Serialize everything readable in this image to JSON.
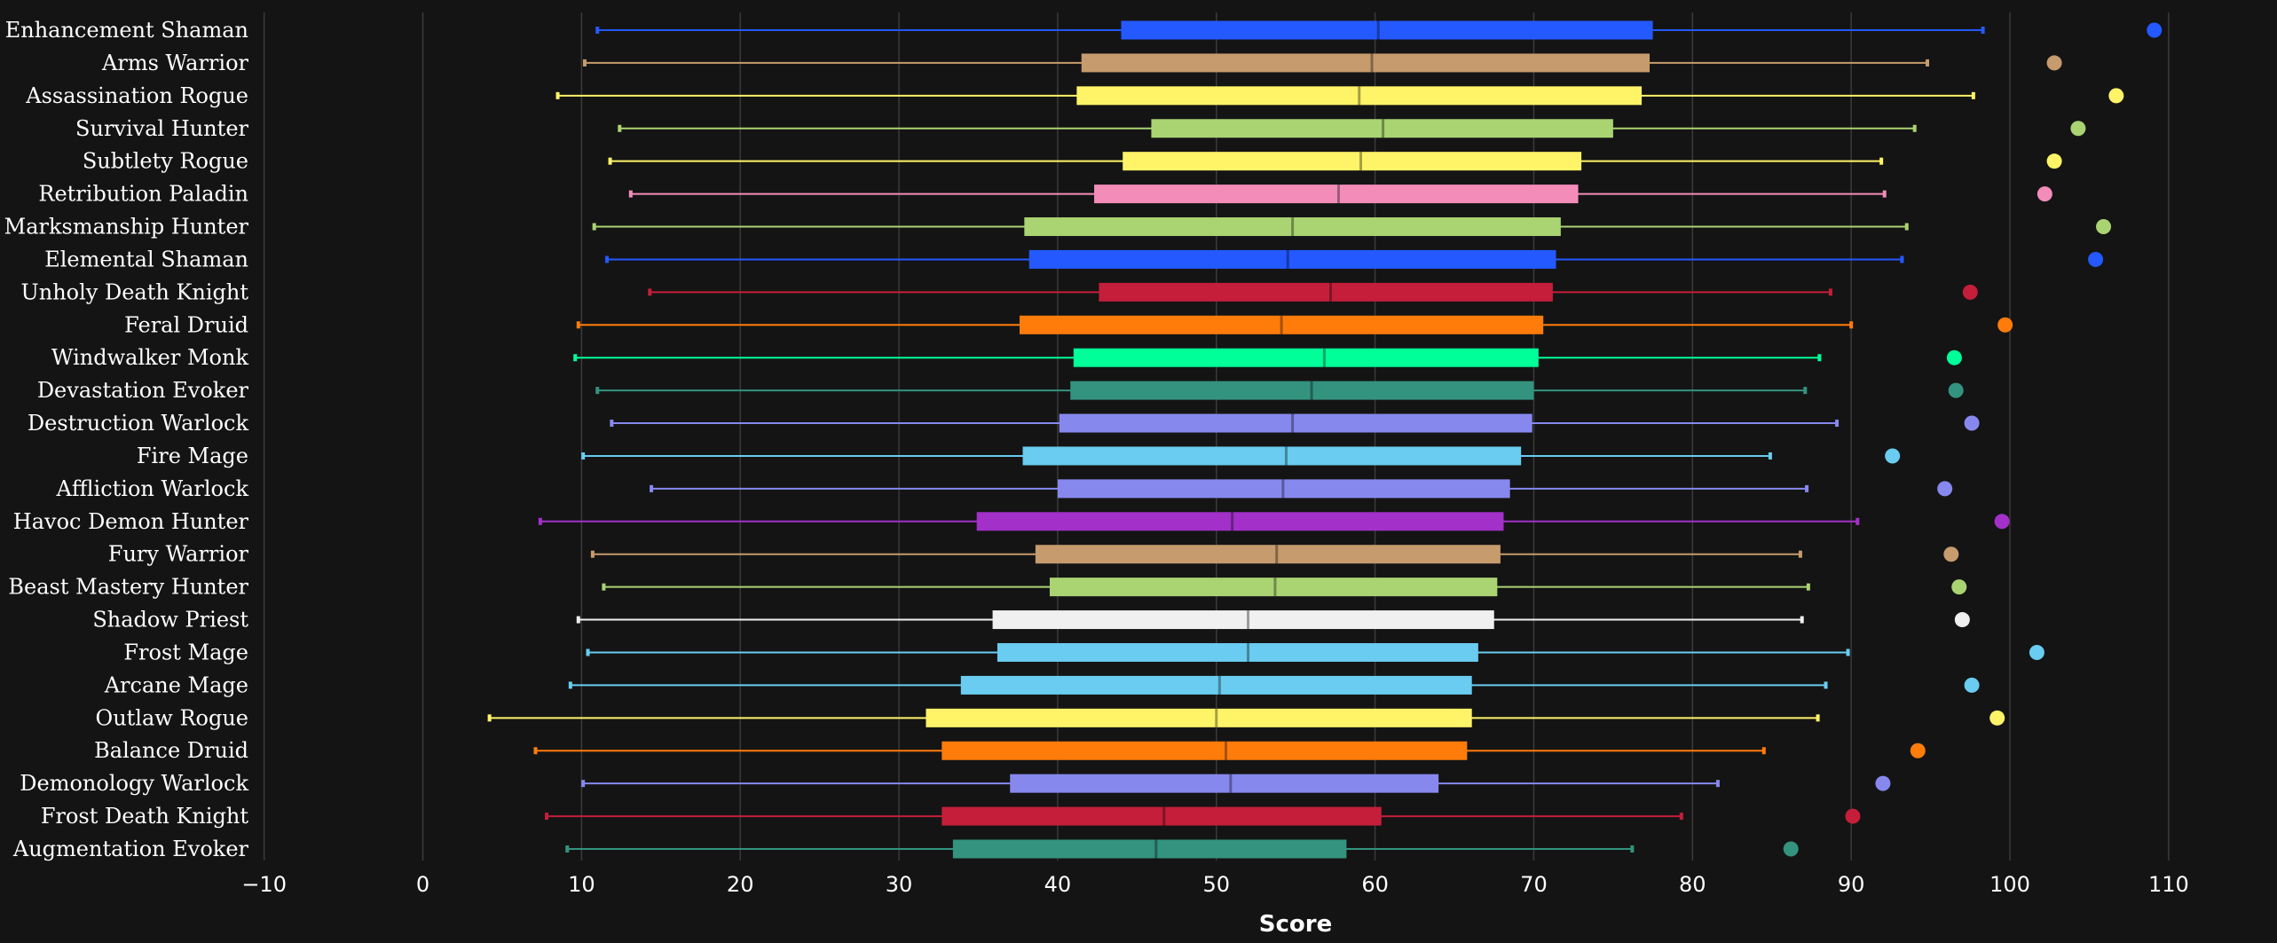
{
  "chart_data": {
    "type": "box",
    "orientation": "horizontal",
    "xlabel": "Score",
    "xlim": [
      -10,
      110
    ],
    "xticks": [
      -10,
      0,
      10,
      20,
      30,
      40,
      50,
      60,
      70,
      80,
      90,
      100,
      110
    ],
    "xtick_labels": [
      "−10",
      "0",
      "10",
      "20",
      "30",
      "40",
      "50",
      "60",
      "70",
      "80",
      "90",
      "100",
      "110"
    ],
    "grid": "vertical",
    "background": "#141414",
    "series": [
      {
        "name": "Enhancement Shaman",
        "color": "#2459FF",
        "whisker_low": 11.0,
        "q1": 44.0,
        "median": 60.2,
        "q3": 77.5,
        "whisker_high": 98.3,
        "outlier": 109.1
      },
      {
        "name": "Arms Warrior",
        "color": "#C69B6D",
        "whisker_low": 10.2,
        "q1": 41.5,
        "median": 59.8,
        "q3": 77.3,
        "whisker_high": 94.8,
        "outlier": 102.8
      },
      {
        "name": "Assassination Rogue",
        "color": "#FFF468",
        "whisker_low": 8.5,
        "q1": 41.2,
        "median": 59.0,
        "q3": 76.8,
        "whisker_high": 97.7,
        "outlier": 106.7
      },
      {
        "name": "Survival Hunter",
        "color": "#AAD372",
        "whisker_low": 12.4,
        "q1": 45.9,
        "median": 60.5,
        "q3": 75.0,
        "whisker_high": 94.0,
        "outlier": 104.3
      },
      {
        "name": "Subtlety Rogue",
        "color": "#FFF468",
        "whisker_low": 11.8,
        "q1": 44.1,
        "median": 59.1,
        "q3": 73.0,
        "whisker_high": 91.9,
        "outlier": 102.8
      },
      {
        "name": "Retribution Paladin",
        "color": "#F48CBA",
        "whisker_low": 13.1,
        "q1": 42.3,
        "median": 57.7,
        "q3": 72.8,
        "whisker_high": 92.1,
        "outlier": 102.2
      },
      {
        "name": "Marksmanship Hunter",
        "color": "#AAD372",
        "whisker_low": 10.8,
        "q1": 37.9,
        "median": 54.8,
        "q3": 71.7,
        "whisker_high": 93.5,
        "outlier": 105.9
      },
      {
        "name": "Elemental Shaman",
        "color": "#2459FF",
        "whisker_low": 11.6,
        "q1": 38.2,
        "median": 54.5,
        "q3": 71.4,
        "whisker_high": 93.2,
        "outlier": 105.4
      },
      {
        "name": "Unholy Death Knight",
        "color": "#C41E3A",
        "whisker_low": 14.3,
        "q1": 42.6,
        "median": 57.2,
        "q3": 71.2,
        "whisker_high": 88.7,
        "outlier": 97.5
      },
      {
        "name": "Feral Druid",
        "color": "#FF7C0A",
        "whisker_low": 9.8,
        "q1": 37.6,
        "median": 54.1,
        "q3": 70.6,
        "whisker_high": 90.0,
        "outlier": 99.7
      },
      {
        "name": "Windwalker Monk",
        "color": "#00FF98",
        "whisker_low": 9.6,
        "q1": 41.0,
        "median": 56.8,
        "q3": 70.3,
        "whisker_high": 88.0,
        "outlier": 96.5
      },
      {
        "name": "Devastation Evoker",
        "color": "#33937F",
        "whisker_low": 11.0,
        "q1": 40.8,
        "median": 56.0,
        "q3": 70.0,
        "whisker_high": 87.1,
        "outlier": 96.6
      },
      {
        "name": "Destruction Warlock",
        "color": "#8788EE",
        "whisker_low": 11.9,
        "q1": 40.1,
        "median": 54.8,
        "q3": 69.9,
        "whisker_high": 89.1,
        "outlier": 97.6
      },
      {
        "name": "Fire Mage",
        "color": "#69CCF0",
        "whisker_low": 10.1,
        "q1": 37.8,
        "median": 54.4,
        "q3": 69.2,
        "whisker_high": 84.9,
        "outlier": 92.6
      },
      {
        "name": "Affliction Warlock",
        "color": "#8788EE",
        "whisker_low": 14.4,
        "q1": 40.0,
        "median": 54.2,
        "q3": 68.5,
        "whisker_high": 87.2,
        "outlier": 95.9
      },
      {
        "name": "Havoc Demon Hunter",
        "color": "#A330C9",
        "whisker_low": 7.4,
        "q1": 34.9,
        "median": 51.0,
        "q3": 68.1,
        "whisker_high": 90.4,
        "outlier": 99.5
      },
      {
        "name": "Fury Warrior",
        "color": "#C69B6D",
        "whisker_low": 10.7,
        "q1": 38.6,
        "median": 53.8,
        "q3": 67.9,
        "whisker_high": 86.8,
        "outlier": 96.3
      },
      {
        "name": "Beast Mastery Hunter",
        "color": "#AAD372",
        "whisker_low": 11.4,
        "q1": 39.5,
        "median": 53.7,
        "q3": 67.7,
        "whisker_high": 87.3,
        "outlier": 96.8
      },
      {
        "name": "Shadow Priest",
        "color": "#F0F0F0",
        "whisker_low": 9.8,
        "q1": 35.9,
        "median": 52.0,
        "q3": 67.5,
        "whisker_high": 86.9,
        "outlier": 97.0
      },
      {
        "name": "Frost Mage",
        "color": "#69CCF0",
        "whisker_low": 10.4,
        "q1": 36.2,
        "median": 52.0,
        "q3": 66.5,
        "whisker_high": 89.8,
        "outlier": 101.7
      },
      {
        "name": "Arcane Mage",
        "color": "#69CCF0",
        "whisker_low": 9.3,
        "q1": 33.9,
        "median": 50.2,
        "q3": 66.1,
        "whisker_high": 88.4,
        "outlier": 97.6
      },
      {
        "name": "Outlaw Rogue",
        "color": "#FFF468",
        "whisker_low": 4.2,
        "q1": 31.7,
        "median": 50.0,
        "q3": 66.1,
        "whisker_high": 87.9,
        "outlier": 99.2
      },
      {
        "name": "Balance Druid",
        "color": "#FF7C0A",
        "whisker_low": 7.1,
        "q1": 32.7,
        "median": 50.6,
        "q3": 65.8,
        "whisker_high": 84.5,
        "outlier": 94.2
      },
      {
        "name": "Demonology Warlock",
        "color": "#8788EE",
        "whisker_low": 10.1,
        "q1": 37.0,
        "median": 50.9,
        "q3": 64.0,
        "whisker_high": 81.6,
        "outlier": 92.0
      },
      {
        "name": "Frost Death Knight",
        "color": "#C41E3A",
        "whisker_low": 7.8,
        "q1": 32.7,
        "median": 46.7,
        "q3": 60.4,
        "whisker_high": 79.3,
        "outlier": 90.1
      },
      {
        "name": "Augmentation Evoker",
        "color": "#33937F",
        "whisker_low": 9.1,
        "q1": 33.4,
        "median": 46.2,
        "q3": 58.2,
        "whisker_high": 76.2,
        "outlier": 86.2
      }
    ]
  }
}
